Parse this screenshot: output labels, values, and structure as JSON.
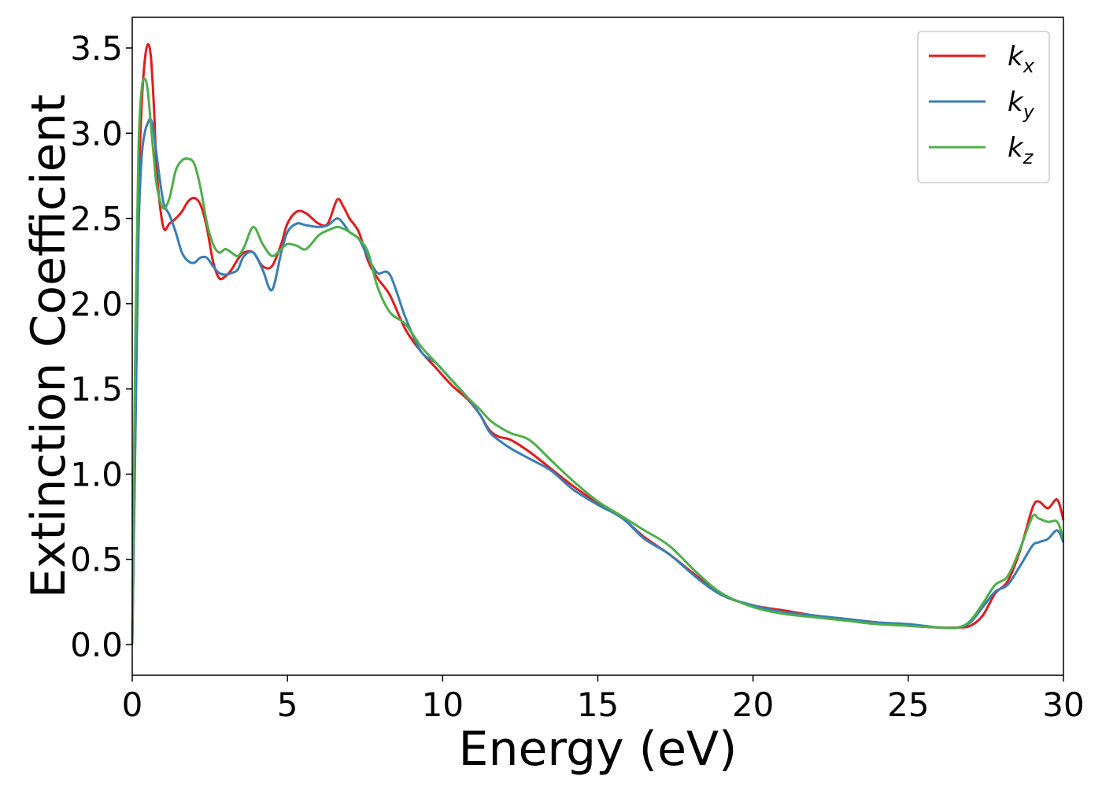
{
  "chart_data": {
    "type": "line",
    "xlabel": "Energy (eV)",
    "ylabel": "Extinction Coefficient",
    "xlim": [
      0,
      30
    ],
    "ylim": [
      -0.18,
      3.68
    ],
    "xticks": [
      0,
      5,
      10,
      15,
      20,
      25,
      30
    ],
    "xtick_labels": [
      "0",
      "5",
      "10",
      "15",
      "20",
      "25",
      "30"
    ],
    "yticks": [
      0.0,
      0.5,
      1.0,
      1.5,
      2.0,
      2.5,
      3.0,
      3.5
    ],
    "ytick_labels": [
      "0.0",
      "0.5",
      "1.0",
      "1.5",
      "2.0",
      "2.5",
      "3.0",
      "3.5"
    ],
    "grid": false,
    "legend_position": "top-right",
    "series": [
      {
        "name": "k",
        "subscript": "x",
        "color": "#e41a1c",
        "x": [
          0,
          0.1,
          0.2,
          0.3,
          0.4,
          0.5,
          0.6,
          0.7,
          0.8,
          1.0,
          1.2,
          1.4,
          1.6,
          1.8,
          2.0,
          2.2,
          2.4,
          2.6,
          2.8,
          3.0,
          3.2,
          3.4,
          3.6,
          3.9,
          4.2,
          4.5,
          4.8,
          5.0,
          5.3,
          5.6,
          6.0,
          6.3,
          6.6,
          6.8,
          7.0,
          7.3,
          7.6,
          7.9,
          8.3,
          8.8,
          9.3,
          9.8,
          10.3,
          10.8,
          11.2,
          11.5,
          11.8,
          12.2,
          12.8,
          13.5,
          14.2,
          15.0,
          15.8,
          16.5,
          17.3,
          18.2,
          19.0,
          20.0,
          21.0,
          22.0,
          23.0,
          24.0,
          25.0,
          26.0,
          26.6,
          27.0,
          27.4,
          27.8,
          28.2,
          28.6,
          29.0,
          29.2,
          29.5,
          29.8,
          30.0
        ],
        "values": [
          0.0,
          1.3,
          2.6,
          3.15,
          3.42,
          3.52,
          3.45,
          3.15,
          2.75,
          2.45,
          2.47,
          2.5,
          2.54,
          2.6,
          2.62,
          2.58,
          2.45,
          2.25,
          2.15,
          2.16,
          2.2,
          2.26,
          2.3,
          2.3,
          2.22,
          2.22,
          2.35,
          2.47,
          2.54,
          2.53,
          2.47,
          2.47,
          2.61,
          2.57,
          2.5,
          2.42,
          2.25,
          2.15,
          2.05,
          1.85,
          1.72,
          1.62,
          1.52,
          1.44,
          1.35,
          1.26,
          1.22,
          1.2,
          1.13,
          1.03,
          0.93,
          0.83,
          0.74,
          0.63,
          0.53,
          0.4,
          0.29,
          0.23,
          0.2,
          0.17,
          0.15,
          0.13,
          0.11,
          0.1,
          0.1,
          0.11,
          0.17,
          0.3,
          0.37,
          0.55,
          0.8,
          0.84,
          0.8,
          0.85,
          0.73
        ]
      },
      {
        "name": "k",
        "subscript": "y",
        "color": "#377eb8",
        "x": [
          0,
          0.1,
          0.2,
          0.3,
          0.4,
          0.5,
          0.6,
          0.7,
          0.8,
          1.0,
          1.2,
          1.4,
          1.6,
          1.8,
          2.0,
          2.2,
          2.4,
          2.6,
          2.8,
          3.0,
          3.2,
          3.4,
          3.6,
          3.9,
          4.2,
          4.5,
          4.8,
          5.0,
          5.3,
          5.6,
          6.0,
          6.3,
          6.6,
          6.8,
          7.0,
          7.3,
          7.6,
          7.9,
          8.3,
          8.8,
          9.3,
          9.8,
          10.3,
          10.8,
          11.2,
          11.5,
          11.8,
          12.2,
          12.8,
          13.5,
          14.2,
          15.0,
          15.8,
          16.5,
          17.3,
          18.2,
          19.0,
          20.0,
          21.0,
          22.0,
          23.0,
          24.0,
          25.0,
          26.0,
          26.6,
          27.0,
          27.4,
          27.8,
          28.2,
          28.6,
          29.0,
          29.2,
          29.5,
          29.8,
          30.0
        ],
        "values": [
          0.0,
          1.2,
          2.4,
          2.85,
          3.0,
          3.06,
          3.08,
          3.0,
          2.85,
          2.6,
          2.52,
          2.42,
          2.3,
          2.25,
          2.24,
          2.27,
          2.27,
          2.22,
          2.18,
          2.17,
          2.18,
          2.2,
          2.28,
          2.3,
          2.2,
          2.08,
          2.3,
          2.42,
          2.47,
          2.46,
          2.45,
          2.46,
          2.5,
          2.47,
          2.42,
          2.38,
          2.27,
          2.18,
          2.17,
          1.92,
          1.72,
          1.65,
          1.55,
          1.45,
          1.35,
          1.25,
          1.2,
          1.15,
          1.09,
          1.02,
          0.91,
          0.82,
          0.74,
          0.62,
          0.53,
          0.39,
          0.29,
          0.23,
          0.19,
          0.17,
          0.15,
          0.13,
          0.12,
          0.1,
          0.1,
          0.13,
          0.22,
          0.31,
          0.35,
          0.46,
          0.58,
          0.6,
          0.62,
          0.67,
          0.6
        ]
      },
      {
        "name": "k",
        "subscript": "z",
        "color": "#4daf4a",
        "x": [
          0,
          0.1,
          0.2,
          0.3,
          0.4,
          0.5,
          0.6,
          0.7,
          0.8,
          1.0,
          1.2,
          1.4,
          1.6,
          1.8,
          2.0,
          2.2,
          2.4,
          2.6,
          2.8,
          3.0,
          3.2,
          3.4,
          3.6,
          3.9,
          4.2,
          4.5,
          4.8,
          5.0,
          5.3,
          5.6,
          6.0,
          6.3,
          6.6,
          6.8,
          7.0,
          7.3,
          7.6,
          7.9,
          8.3,
          8.8,
          9.3,
          9.8,
          10.3,
          10.8,
          11.2,
          11.5,
          11.8,
          12.2,
          12.8,
          13.5,
          14.2,
          15.0,
          15.8,
          16.5,
          17.3,
          18.2,
          19.0,
          20.0,
          21.0,
          22.0,
          23.0,
          24.0,
          25.0,
          26.0,
          26.6,
          27.0,
          27.4,
          27.8,
          28.2,
          28.6,
          29.0,
          29.2,
          29.5,
          29.8,
          30.0
        ],
        "values": [
          0.0,
          1.8,
          2.9,
          3.25,
          3.32,
          3.25,
          3.05,
          2.85,
          2.68,
          2.56,
          2.62,
          2.78,
          2.84,
          2.85,
          2.82,
          2.68,
          2.48,
          2.35,
          2.3,
          2.32,
          2.3,
          2.28,
          2.33,
          2.45,
          2.35,
          2.28,
          2.32,
          2.35,
          2.34,
          2.32,
          2.4,
          2.43,
          2.45,
          2.44,
          2.42,
          2.38,
          2.3,
          2.1,
          1.95,
          1.88,
          1.75,
          1.65,
          1.55,
          1.45,
          1.38,
          1.32,
          1.28,
          1.24,
          1.2,
          1.08,
          0.96,
          0.84,
          0.75,
          0.67,
          0.58,
          0.42,
          0.3,
          0.22,
          0.18,
          0.16,
          0.14,
          0.12,
          0.11,
          0.1,
          0.1,
          0.14,
          0.24,
          0.35,
          0.4,
          0.56,
          0.75,
          0.74,
          0.72,
          0.72,
          0.62
        ]
      }
    ]
  }
}
